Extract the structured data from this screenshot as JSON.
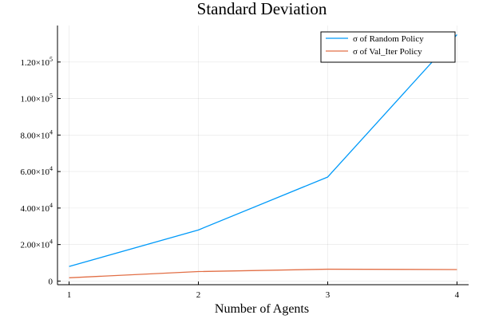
{
  "chart_data": {
    "type": "line",
    "title": "Standard Deviation",
    "xlabel": "Number of Agents",
    "ylabel": "",
    "x": [
      1,
      2,
      3,
      4
    ],
    "xlim": [
      0.91,
      4.09
    ],
    "ylim": [
      -2000,
      140000
    ],
    "xticks": [
      1,
      2,
      3,
      4
    ],
    "yticks": [
      0,
      20000,
      40000,
      60000,
      80000,
      100000,
      120000
    ],
    "ytick_labels": [
      {
        "mantissa": "0",
        "exp": ""
      },
      {
        "mantissa": "2.00×10",
        "exp": "4"
      },
      {
        "mantissa": "4.00×10",
        "exp": "4"
      },
      {
        "mantissa": "6.00×10",
        "exp": "4"
      },
      {
        "mantissa": "8.00×10",
        "exp": "4"
      },
      {
        "mantissa": "1.00×10",
        "exp": "5"
      },
      {
        "mantissa": "1.20×10",
        "exp": "5"
      }
    ],
    "grid": true,
    "legend_position": "top-right",
    "series": [
      {
        "name": "σ of Random Policy",
        "color": "#009af9",
        "values": [
          8000,
          28000,
          57000,
          135000
        ]
      },
      {
        "name": "σ of Val_Iter Policy",
        "color": "#e26f46",
        "values": [
          1800,
          5200,
          6500,
          6300
        ]
      }
    ]
  }
}
